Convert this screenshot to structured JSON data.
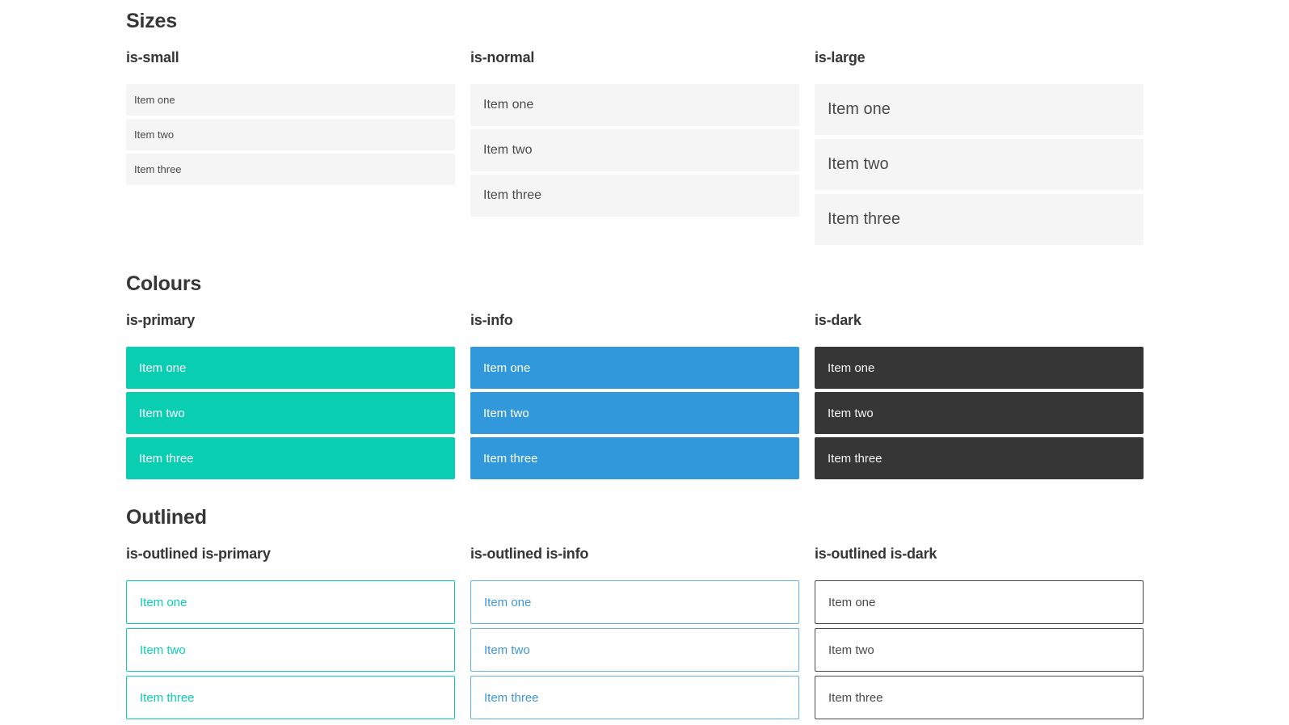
{
  "colors": {
    "page_background": "#ffffff",
    "default_item_bg": "#f5f5f5",
    "default_item_text": "#4a4a4a",
    "heading_text": "#363636",
    "primary": "#0aceb2",
    "info": "#3298dc",
    "dark": "#363636",
    "on_color_text": "#ffffff"
  },
  "sections": [
    {
      "title": "Sizes",
      "groups": [
        {
          "label": "is-small",
          "variant": "small",
          "items": [
            "Item one",
            "Item two",
            "Item three"
          ]
        },
        {
          "label": "is-normal",
          "variant": "normal",
          "items": [
            "Item one",
            "Item two",
            "Item three"
          ]
        },
        {
          "label": "is-large",
          "variant": "large",
          "items": [
            "Item one",
            "Item two",
            "Item three"
          ]
        }
      ]
    },
    {
      "title": "Colours",
      "groups": [
        {
          "label": "is-primary",
          "variant": "primary",
          "items": [
            "Item one",
            "Item two",
            "Item three"
          ]
        },
        {
          "label": "is-info",
          "variant": "info",
          "items": [
            "Item one",
            "Item two",
            "Item three"
          ]
        },
        {
          "label": "is-dark",
          "variant": "dark",
          "items": [
            "Item one",
            "Item two",
            "Item three"
          ]
        }
      ]
    },
    {
      "title": "Outlined",
      "groups": [
        {
          "label": "is-outlined is-primary",
          "variant": "outlined-primary",
          "items": [
            "Item one",
            "Item two",
            "Item three"
          ]
        },
        {
          "label": "is-outlined is-info",
          "variant": "outlined-info",
          "items": [
            "Item one",
            "Item two",
            "Item three"
          ]
        },
        {
          "label": "is-outlined is-dark",
          "variant": "outlined-dark",
          "items": [
            "Item one",
            "Item two",
            "Item three"
          ]
        }
      ]
    }
  ]
}
